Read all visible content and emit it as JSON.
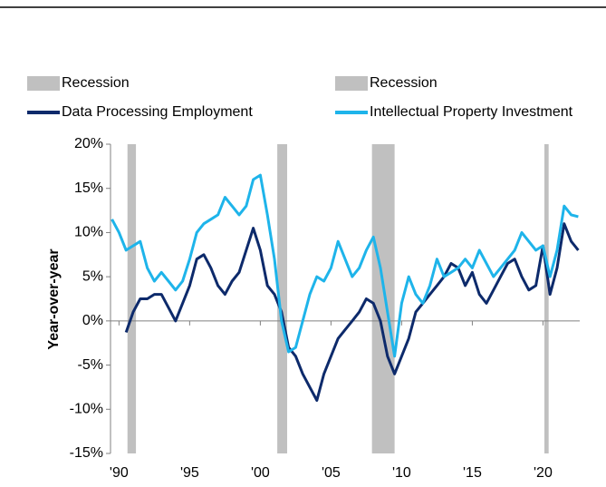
{
  "chart_data": {
    "type": "line",
    "ylabel": "Year-over-year",
    "recession": {
      "name": "Recession",
      "color": "#c0c0c0",
      "spans": [
        [
          1990.6,
          1991.2
        ],
        [
          2001.2,
          2001.9
        ],
        [
          2007.9,
          2009.5
        ],
        [
          2020.1,
          2020.4
        ]
      ]
    },
    "x": [
      1989.5,
      1990,
      1990.5,
      1991,
      1991.5,
      1992,
      1992.5,
      1993,
      1993.5,
      1994,
      1994.5,
      1995,
      1995.5,
      1996,
      1996.5,
      1997,
      1997.5,
      1998,
      1998.5,
      1999,
      1999.5,
      2000,
      2000.5,
      2001,
      2001.5,
      2002,
      2002.5,
      2003,
      2003.5,
      2004,
      2004.5,
      2005,
      2005.5,
      2006,
      2006.5,
      2007,
      2007.5,
      2008,
      2008.5,
      2009,
      2009.5,
      2010,
      2010.5,
      2011,
      2011.5,
      2012,
      2012.5,
      2013,
      2013.5,
      2014,
      2014.5,
      2015,
      2015.5,
      2016,
      2016.5,
      2017,
      2017.5,
      2018,
      2018.5,
      2019,
      2019.5,
      2020,
      2020.5,
      2021,
      2021.5,
      2022,
      2022.5
    ],
    "series": [
      {
        "name": "Data Processing Employment",
        "color": "#0d2a6b",
        "values": [
          null,
          null,
          -1.3,
          1,
          2.5,
          2.5,
          3,
          3,
          1.5,
          0,
          2,
          4,
          7,
          7.5,
          6,
          4,
          3,
          4.5,
          5.5,
          8,
          10.5,
          8,
          4,
          3,
          1,
          -3,
          -4,
          -6,
          -7.5,
          -9,
          -6,
          -4,
          -2,
          -1,
          0,
          1,
          2.5,
          2,
          0,
          -4,
          -6,
          -4,
          -2,
          1,
          2,
          3,
          4,
          5,
          6.5,
          6,
          4,
          5.5,
          3,
          2,
          3.5,
          5,
          6.5,
          7,
          5,
          3.5,
          4,
          8.5,
          3,
          6,
          11,
          9,
          8
        ]
      },
      {
        "name": "Intellectual Property Investment",
        "color": "#1eb4ea",
        "values": [
          11.5,
          10,
          8,
          8.5,
          9,
          6,
          4.5,
          5.5,
          4.5,
          3.5,
          4.5,
          7,
          10,
          11,
          11.5,
          12,
          14,
          13,
          12,
          13,
          16,
          16.5,
          12,
          7,
          0,
          -3.5,
          -3,
          0,
          3,
          5,
          4.5,
          6,
          9,
          7,
          5,
          6,
          8,
          9.5,
          6,
          1,
          -4,
          2,
          5,
          3,
          2,
          4,
          7,
          5,
          5.5,
          6,
          7,
          6,
          8,
          6.5,
          5,
          6,
          7,
          8,
          10,
          9,
          8,
          8.5,
          5,
          8,
          13,
          12,
          11.8
        ]
      }
    ],
    "xlim": [
      1989.4,
      2022.6
    ],
    "xticks": [
      {
        "value": 1990,
        "label": "'90"
      },
      {
        "value": 1995,
        "label": "'95"
      },
      {
        "value": 2000,
        "label": "'00"
      },
      {
        "value": 2005,
        "label": "'05"
      },
      {
        "value": 2010,
        "label": "'10"
      },
      {
        "value": 2015,
        "label": "'15"
      },
      {
        "value": 2020,
        "label": "'20"
      }
    ],
    "ylim": [
      -15,
      20
    ],
    "yticks": [
      {
        "value": -15,
        "label": "-15%"
      },
      {
        "value": -10,
        "label": "-10%"
      },
      {
        "value": -5,
        "label": "-5%"
      },
      {
        "value": 0,
        "label": "0%"
      },
      {
        "value": 5,
        "label": "5%"
      },
      {
        "value": 10,
        "label": "10%"
      },
      {
        "value": 15,
        "label": "15%"
      },
      {
        "value": 20,
        "label": "20%"
      }
    ]
  }
}
